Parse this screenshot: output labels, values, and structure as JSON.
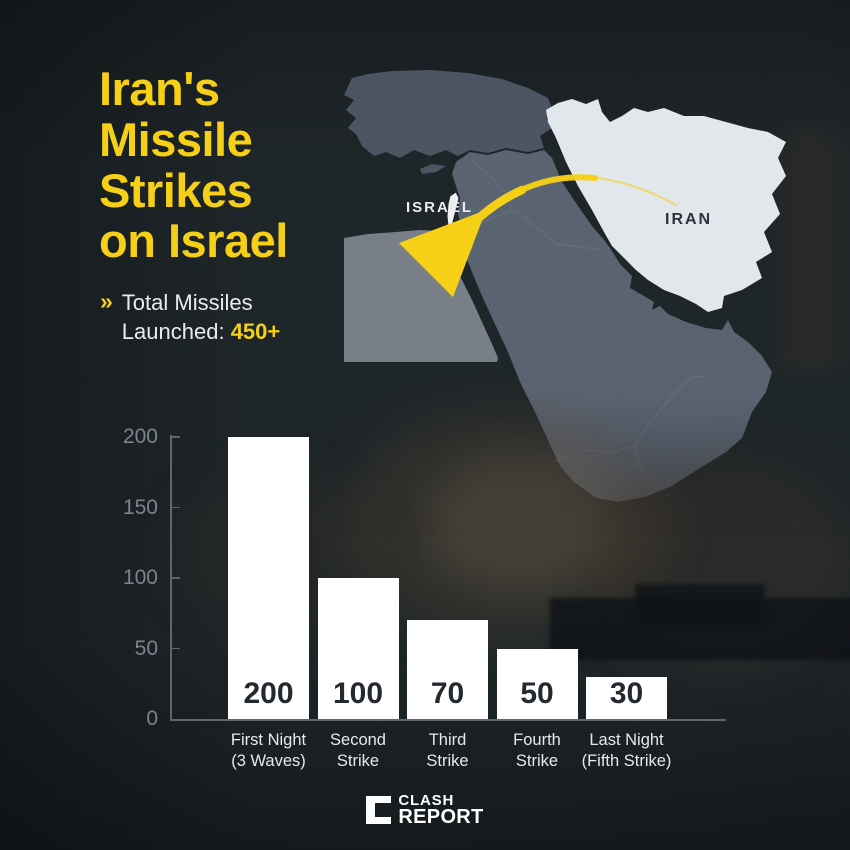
{
  "title": {
    "text": "Iran's\nMissile\nStrikes\non Israel"
  },
  "subtitle": {
    "chevron": "»",
    "line1": "Total Missiles",
    "line2_label": "Launched:",
    "total": "450+"
  },
  "map": {
    "labels": {
      "israel": "ISRAEL",
      "iran": "IRAN"
    },
    "colors": {
      "turkey": "#4C5662",
      "mainland": "#5A6370",
      "egypt": "#787F88",
      "iran": "#E2E7EB",
      "israel": "#EDF1F3",
      "border_line": "#8A93A0"
    }
  },
  "chart_data": {
    "type": "bar",
    "categories": [
      "First Night\n(3 Waves)",
      "Second\nStrike",
      "Third\nStrike",
      "Fourth\nStrike",
      "Last Night\n(Fifth Strike)"
    ],
    "values": [
      200,
      100,
      70,
      50,
      30
    ],
    "bar_labels": [
      "200",
      "100",
      "70",
      "50",
      "30"
    ],
    "yticks": [
      0,
      50,
      100,
      150,
      200
    ],
    "ylim": [
      0,
      200
    ],
    "title": "",
    "xlabel": "",
    "ylabel": "",
    "grid": false,
    "bar_color": "#FFFFFF",
    "legend": null
  },
  "footer": {
    "brand_line1": "CLASH",
    "brand_line2": "REPORT"
  },
  "colors": {
    "accent_yellow": "#F5D017",
    "background": "#1F2629",
    "axis": "#5E666F",
    "ytick_text": "#7B838C",
    "xlabel_text": "#E5E9EC",
    "bar_value_text": "#23292F"
  }
}
